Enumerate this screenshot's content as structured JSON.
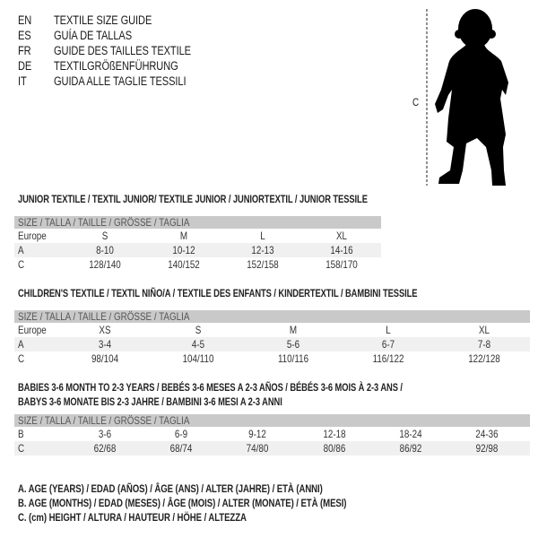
{
  "languages": [
    {
      "code": "EN",
      "title": "TEXTILE SIZE GUIDE"
    },
    {
      "code": "ES",
      "title": "GUÍA DE TALLAS"
    },
    {
      "code": "FR",
      "title": "GUIDE DES TAILLES TEXTILE"
    },
    {
      "code": "DE",
      "title": "TEXTILGRÖßENFÜHRUNG"
    },
    {
      "code": "IT",
      "title": "GUIDA ALLE TAGLIE TESSILI"
    }
  ],
  "figure": {
    "label": "C",
    "icon": "baby-silhouette-icon"
  },
  "header_label": "SIZE / TALLA / TAILLE / GRÖSSE / TAGLIA",
  "junior": {
    "title": "JUNIOR TEXTILE / TEXTIL JUNIOR/ TEXTILE JUNIOR / JUNIORTEXTIL / JUNIOR TESSILE",
    "rows": [
      {
        "label": "Europe",
        "cells": [
          "S",
          "M",
          "L",
          "XL"
        ]
      },
      {
        "label": "A",
        "cells": [
          "8-10",
          "10-12",
          "12-13",
          "14-16"
        ]
      },
      {
        "label": "C",
        "cells": [
          "128/140",
          "140/152",
          "152/158",
          "158/170"
        ]
      }
    ]
  },
  "children": {
    "title": "CHILDREN'S TEXTILE / TEXTIL NIÑO/A / TEXTILE DES ENFANTS / KINDERTEXTIL / BAMBINI TESSILE",
    "rows": [
      {
        "label": "Europe",
        "cells": [
          "XS",
          "S",
          "M",
          "L",
          "XL"
        ]
      },
      {
        "label": "A",
        "cells": [
          "3-4",
          "4-5",
          "5-6",
          "6-7",
          "7-8"
        ]
      },
      {
        "label": "C",
        "cells": [
          "98/104",
          "104/110",
          "110/116",
          "116/122",
          "122/128"
        ]
      }
    ]
  },
  "babies": {
    "title_line1": "BABIES 3-6 MONTH TO 2-3 YEARS / BEBÉS 3-6 MESES A 2-3 AÑOS / BÉBÉS 3-6 MOIS À 2-3 ANS /",
    "title_line2": "BABYS 3-6 MONATE BIS 2-3 JAHRE / BAMBINI 3-6 MESI A 2-3 ANNI",
    "rows": [
      {
        "label": "B",
        "cells": [
          "3-6",
          "6-9",
          "9-12",
          "12-18",
          "18-24",
          "24-36"
        ]
      },
      {
        "label": "C",
        "cells": [
          "62/68",
          "68/74",
          "74/80",
          "80/86",
          "86/92",
          "92/98"
        ]
      }
    ]
  },
  "legend": [
    "A. AGE (YEARS) / EDAD (AÑOS) / ÂGE (ANS) / ALTER (JAHRE) / ETÀ (ANNI)",
    "B. AGE (MONTHS) / EDAD (MESES) / ÂGE (MOIS) / ALTER (MONATE) / ETÀ (MESI)",
    "C. (cm) HEIGHT / ALTURA / HAUTEUR / HÖHE / ALTEZZA"
  ]
}
